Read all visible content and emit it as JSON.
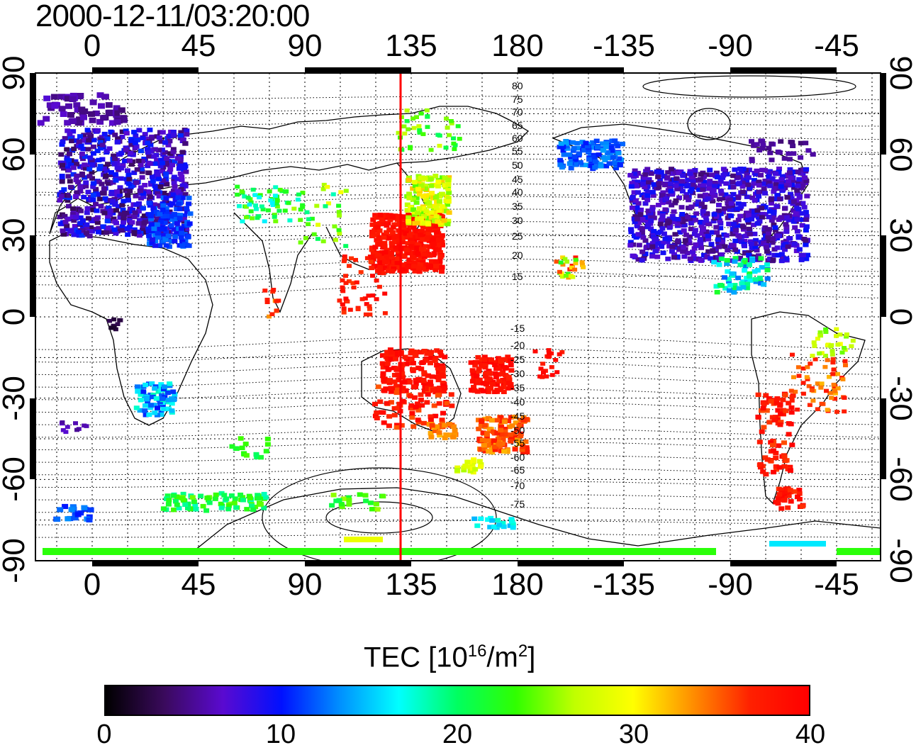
{
  "title": "2000-12-11/03:20:00",
  "lon_ticks": [
    "0",
    "45",
    "90",
    "135",
    "180",
    "-135",
    "-90",
    "-45"
  ],
  "lat_ticks": [
    "90",
    "60",
    "30",
    "0",
    "-30",
    "-60",
    "-90"
  ],
  "contour_labels_north": [
    "80",
    "75",
    "70",
    "65",
    "60",
    "55",
    "50",
    "45",
    "40",
    "35",
    "30",
    "25",
    "20",
    "15"
  ],
  "contour_labels_south": [
    "-15",
    "-20",
    "-25",
    "-30",
    "-35",
    "-40",
    "-45",
    "-50",
    "-55",
    "-60",
    "-65",
    "-70",
    "-75"
  ],
  "colorbar": {
    "label_prefix": "TEC  [10",
    "label_sup1": "16",
    "label_mid": "/m",
    "label_sup2": "2",
    "label_suffix": "]",
    "ticks": [
      "0",
      "10",
      "20",
      "30",
      "40"
    ],
    "range": [
      0,
      40
    ],
    "colors": [
      "#000000",
      "#3a0a5c",
      "#5a0ad0",
      "#0010ff",
      "#0090ff",
      "#00ffff",
      "#00ff60",
      "#30ff00",
      "#c0ff00",
      "#ffff00",
      "#ff9000",
      "#ff2000",
      "#ff0000"
    ]
  },
  "subsolar_marker": {
    "color": "#ff0000",
    "longitude": 130
  },
  "tec_regions": [
    {
      "name": "europe",
      "value": 7
    },
    {
      "name": "north-america",
      "value": 7
    },
    {
      "name": "east-asia",
      "value": 38
    },
    {
      "name": "australia",
      "value": 38
    },
    {
      "name": "south-america",
      "value": 36
    },
    {
      "name": "antarctica",
      "value": 24
    }
  ]
}
